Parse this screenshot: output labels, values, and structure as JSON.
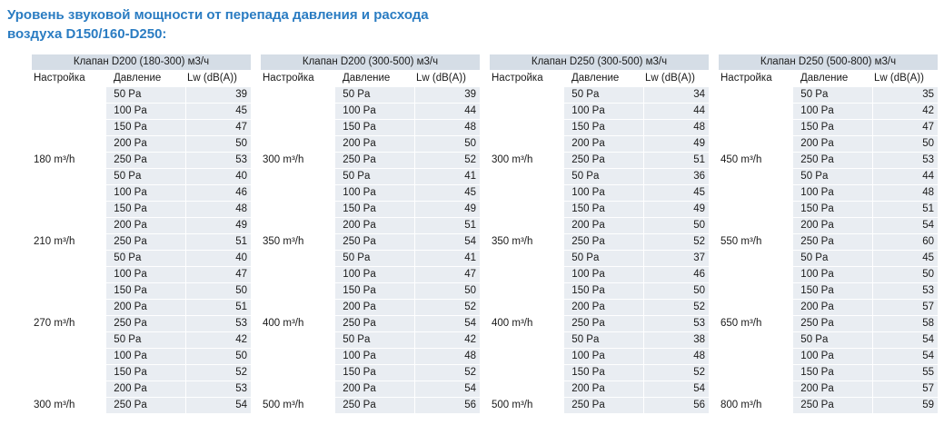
{
  "title": {
    "line1": "Уровень звуковой мощности от перепада давления и расхода",
    "line2": "воздуха D150/160-D250:"
  },
  "columns": {
    "setting": "Настройка",
    "pressure": "Давление",
    "lw": "Lw (dB(A))"
  },
  "colors": {
    "title_blue": "#2a7cc2",
    "table_header_bg": "#d5dde6",
    "cell_bg": "#e9edf2"
  },
  "tables": [
    {
      "header": "Клапан D200 (180-300) м3/ч",
      "groups": [
        {
          "setting": "180 m³/h",
          "rows": [
            {
              "p": "50 Pa",
              "lw": 39
            },
            {
              "p": "100 Pa",
              "lw": 45
            },
            {
              "p": "150 Pa",
              "lw": 47
            },
            {
              "p": "200 Pa",
              "lw": 50
            },
            {
              "p": "250 Pa",
              "lw": 53
            }
          ]
        },
        {
          "setting": "210 m³/h",
          "rows": [
            {
              "p": "50 Pa",
              "lw": 40
            },
            {
              "p": "100 Pa",
              "lw": 46
            },
            {
              "p": "150 Pa",
              "lw": 48
            },
            {
              "p": "200 Pa",
              "lw": 49
            },
            {
              "p": "250 Pa",
              "lw": 51
            }
          ]
        },
        {
          "setting": "270 m³/h",
          "rows": [
            {
              "p": "50 Pa",
              "lw": 40
            },
            {
              "p": "100 Pa",
              "lw": 47
            },
            {
              "p": "150 Pa",
              "lw": 50
            },
            {
              "p": "200 Pa",
              "lw": 51
            },
            {
              "p": "250 Pa",
              "lw": 53
            }
          ]
        },
        {
          "setting": "300 m³/h",
          "rows": [
            {
              "p": "50 Pa",
              "lw": 42
            },
            {
              "p": "100 Pa",
              "lw": 50
            },
            {
              "p": "150 Pa",
              "lw": 52
            },
            {
              "p": "200 Pa",
              "lw": 53
            },
            {
              "p": "250 Pa",
              "lw": 54
            }
          ]
        }
      ]
    },
    {
      "header": "Клапан D200 (300-500) м3/ч",
      "groups": [
        {
          "setting": "300 m³/h",
          "rows": [
            {
              "p": "50 Pa",
              "lw": 39
            },
            {
              "p": "100 Pa",
              "lw": 44
            },
            {
              "p": "150 Pa",
              "lw": 48
            },
            {
              "p": "200 Pa",
              "lw": 50
            },
            {
              "p": "250 Pa",
              "lw": 52
            }
          ]
        },
        {
          "setting": "350 m³/h",
          "rows": [
            {
              "p": "50 Pa",
              "lw": 41
            },
            {
              "p": "100 Pa",
              "lw": 45
            },
            {
              "p": "150 Pa",
              "lw": 49
            },
            {
              "p": "200 Pa",
              "lw": 51
            },
            {
              "p": "250 Pa",
              "lw": 54
            }
          ]
        },
        {
          "setting": "400 m³/h",
          "rows": [
            {
              "p": "50 Pa",
              "lw": 41
            },
            {
              "p": "100 Pa",
              "lw": 47
            },
            {
              "p": "150 Pa",
              "lw": 50
            },
            {
              "p": "200 Pa",
              "lw": 52
            },
            {
              "p": "250 Pa",
              "lw": 54
            }
          ]
        },
        {
          "setting": "500 m³/h",
          "rows": [
            {
              "p": "50 Pa",
              "lw": 42
            },
            {
              "p": "100 Pa",
              "lw": 48
            },
            {
              "p": "150 Pa",
              "lw": 52
            },
            {
              "p": "200 Pa",
              "lw": 54
            },
            {
              "p": "250 Pa",
              "lw": 56
            }
          ]
        }
      ]
    },
    {
      "header": "Клапан D250 (300-500) м3/ч",
      "groups": [
        {
          "setting": "300 m³/h",
          "rows": [
            {
              "p": "50 Pa",
              "lw": 34
            },
            {
              "p": "100 Pa",
              "lw": 44
            },
            {
              "p": "150 Pa",
              "lw": 48
            },
            {
              "p": "200 Pa",
              "lw": 49
            },
            {
              "p": "250 Pa",
              "lw": 51
            }
          ]
        },
        {
          "setting": "350 m³/h",
          "rows": [
            {
              "p": "50 Pa",
              "lw": 36
            },
            {
              "p": "100 Pa",
              "lw": 45
            },
            {
              "p": "150 Pa",
              "lw": 49
            },
            {
              "p": "200 Pa",
              "lw": 50
            },
            {
              "p": "250 Pa",
              "lw": 52
            }
          ]
        },
        {
          "setting": "400 m³/h",
          "rows": [
            {
              "p": "50 Pa",
              "lw": 37
            },
            {
              "p": "100 Pa",
              "lw": 46
            },
            {
              "p": "150 Pa",
              "lw": 50
            },
            {
              "p": "200 Pa",
              "lw": 52
            },
            {
              "p": "250 Pa",
              "lw": 53
            }
          ]
        },
        {
          "setting": "500 m³/h",
          "rows": [
            {
              "p": "50 Pa",
              "lw": 38
            },
            {
              "p": "100 Pa",
              "lw": 48
            },
            {
              "p": "150 Pa",
              "lw": 52
            },
            {
              "p": "200 Pa",
              "lw": 54
            },
            {
              "p": "250 Pa",
              "lw": 56
            }
          ]
        }
      ]
    },
    {
      "header": "Клапан D250 (500-800) м3/ч",
      "groups": [
        {
          "setting": "450 m³/h",
          "rows": [
            {
              "p": "50 Pa",
              "lw": 35
            },
            {
              "p": "100 Pa",
              "lw": 42
            },
            {
              "p": "150 Pa",
              "lw": 47
            },
            {
              "p": "200 Pa",
              "lw": 50
            },
            {
              "p": "250 Pa",
              "lw": 53
            }
          ]
        },
        {
          "setting": "550 m³/h",
          "rows": [
            {
              "p": "50 Pa",
              "lw": 44
            },
            {
              "p": "100 Pa",
              "lw": 48
            },
            {
              "p": "150 Pa",
              "lw": 51
            },
            {
              "p": "200 Pa",
              "lw": 54
            },
            {
              "p": "250 Pa",
              "lw": 60
            }
          ]
        },
        {
          "setting": "650 m³/h",
          "rows": [
            {
              "p": "50 Pa",
              "lw": 45
            },
            {
              "p": "100 Pa",
              "lw": 50
            },
            {
              "p": "150 Pa",
              "lw": 53
            },
            {
              "p": "200 Pa",
              "lw": 57
            },
            {
              "p": "250 Pa",
              "lw": 58
            }
          ]
        },
        {
          "setting": "800 m³/h",
          "rows": [
            {
              "p": "50 Pa",
              "lw": 54
            },
            {
              "p": "100 Pa",
              "lw": 54
            },
            {
              "p": "150 Pa",
              "lw": 55
            },
            {
              "p": "200 Pa",
              "lw": 57
            },
            {
              "p": "250 Pa",
              "lw": 59
            }
          ]
        }
      ]
    }
  ]
}
